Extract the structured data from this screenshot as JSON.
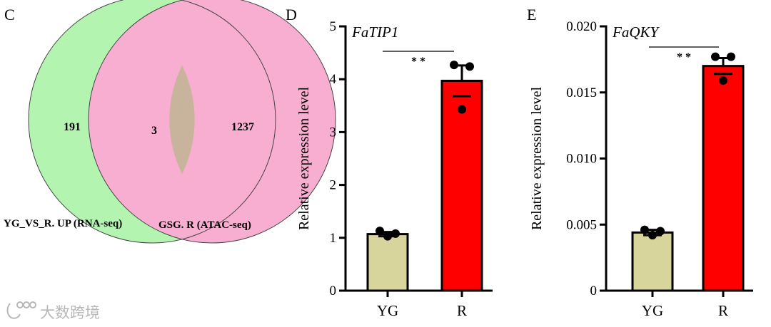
{
  "watermark": "大数跨境",
  "venn": {
    "panel": "C",
    "sets": [
      {
        "label": "YG_VS_R. UP (RNA-seq)",
        "only": "191",
        "color": "#b3f5b0"
      },
      {
        "label": "GSG. R (ATAC-seq)",
        "only": "1237",
        "color": "#f8aed0"
      }
    ],
    "overlap": "3",
    "overlap_color": "#c8b49c"
  },
  "chart_data": [
    {
      "panel": "D",
      "type": "bar",
      "title": "FaTIP1",
      "ylabel": "Relative expression level",
      "categories": [
        "YG",
        "R"
      ],
      "values": [
        1.07,
        3.97
      ],
      "errors": [
        0.04,
        0.29
      ],
      "points": [
        [
          1.13,
          1.08,
          1.03
        ],
        [
          4.27,
          4.24,
          3.43
        ]
      ],
      "ylim": [
        0,
        5
      ],
      "yticks": [
        "0",
        "1",
        "2",
        "3",
        "4",
        "5"
      ],
      "significance": "* *",
      "colors": [
        "#d8d59c",
        "#ff0000"
      ]
    },
    {
      "panel": "E",
      "type": "bar",
      "title": "FaQKY",
      "ylabel": "Relative expression level",
      "categories": [
        "YG",
        "R"
      ],
      "values": [
        0.0044,
        0.017
      ],
      "errors": [
        0.0002,
        0.0006
      ],
      "points": [
        [
          0.0046,
          0.0045,
          0.0042
        ],
        [
          0.0177,
          0.0177,
          0.0159
        ]
      ],
      "ylim": [
        0,
        0.02
      ],
      "yticks": [
        "0",
        "0.005",
        "0.010",
        "0.015",
        "0.020"
      ],
      "significance": "* *",
      "colors": [
        "#d8d59c",
        "#ff0000"
      ]
    }
  ]
}
